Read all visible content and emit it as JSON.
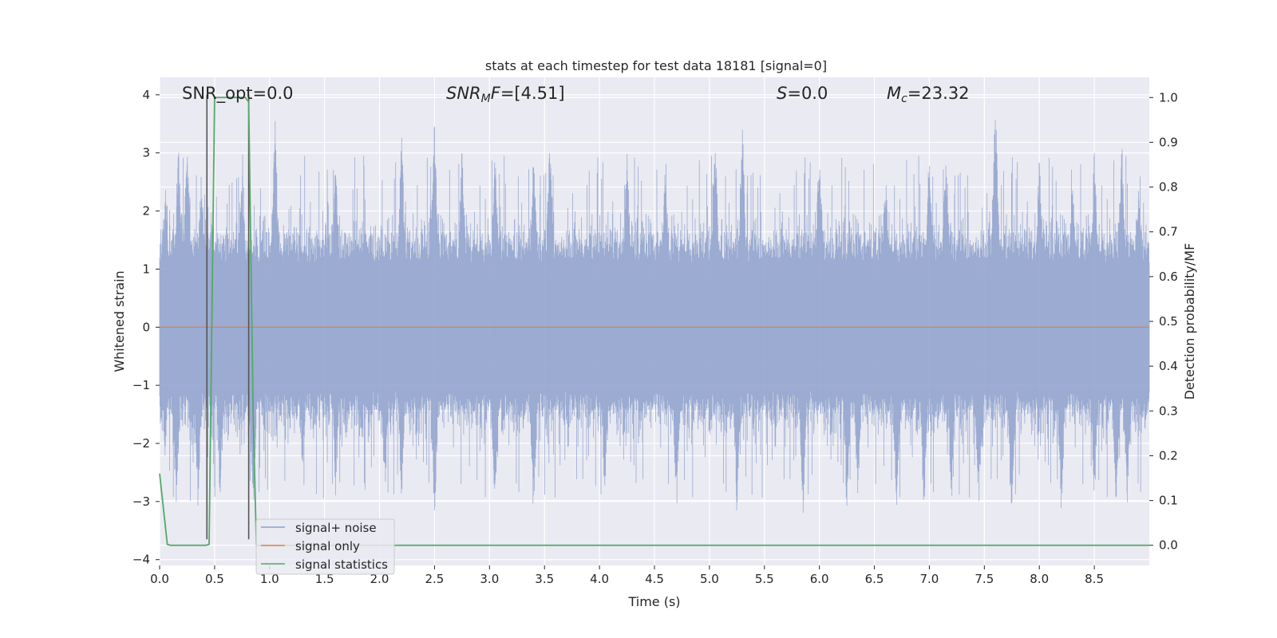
{
  "chart_data": {
    "type": "line",
    "title": "stats at each timestep for test data 18181 [signal=0]",
    "xlabel": "Time (s)",
    "ylabel": "Whitened strain",
    "y2label": "Detection probability/MF",
    "xlim": [
      0.0,
      9.0
    ],
    "ylim": [
      -4.1,
      4.3
    ],
    "y2lim": [
      -0.045,
      1.045
    ],
    "xticks": [
      0.0,
      0.5,
      1.0,
      1.5,
      2.0,
      2.5,
      3.0,
      3.5,
      4.0,
      4.5,
      5.0,
      5.5,
      6.0,
      6.5,
      7.0,
      7.5,
      8.0,
      8.5
    ],
    "xtick_labels": [
      "0.0",
      "0.5",
      "1.0",
      "1.5",
      "2.0",
      "2.5",
      "3.0",
      "3.5",
      "4.0",
      "4.5",
      "5.0",
      "5.5",
      "6.0",
      "6.5",
      "7.0",
      "7.5",
      "8.0",
      "8.5"
    ],
    "yticks": [
      -4,
      -3,
      -2,
      -1,
      0,
      1,
      2,
      3,
      4
    ],
    "ytick_labels": [
      "−4",
      "−3",
      "−2",
      "−1",
      "0",
      "1",
      "2",
      "3",
      "4"
    ],
    "y2ticks": [
      0.0,
      0.1,
      0.2,
      0.3,
      0.4,
      0.5,
      0.6,
      0.7,
      0.8,
      0.9,
      1.0
    ],
    "y2tick_labels": [
      "0.0",
      "0.1",
      "0.2",
      "0.3",
      "0.4",
      "0.5",
      "0.6",
      "0.7",
      "0.8",
      "0.9",
      "1.0"
    ],
    "grid": true,
    "legend_position": "lower-left",
    "annotations": [
      {
        "id": "snr-opt",
        "text": "SNR_opt=0.0",
        "x": 0.2
      },
      {
        "id": "snr-mf",
        "text": "SNR_MF=[4.51]",
        "x": 2.6
      },
      {
        "id": "s-value",
        "text": "S=0.0",
        "x": 5.6
      },
      {
        "id": "mc-value",
        "text": "M_c=23.32",
        "x": 6.6
      }
    ],
    "vlines": [
      0.43,
      0.81
    ],
    "series": [
      {
        "name": "signal+ noise",
        "color": "#8da0cb",
        "axis": "left",
        "description": "dense whitened noise, approx +/-1.5 core with spikes to about +/-3.5",
        "peaks_pos": [
          [
            0.05,
            2.6
          ],
          [
            0.17,
            3.3
          ],
          [
            0.25,
            3.3
          ],
          [
            0.38,
            2.8
          ],
          [
            0.47,
            2.1
          ],
          [
            0.75,
            2.9
          ],
          [
            1.05,
            3.7
          ],
          [
            1.6,
            2.9
          ],
          [
            2.2,
            3.4
          ],
          [
            2.5,
            3.6
          ],
          [
            2.75,
            3.2
          ],
          [
            3.05,
            3.2
          ],
          [
            3.4,
            3.1
          ],
          [
            3.55,
            3.4
          ],
          [
            4.25,
            3.1
          ],
          [
            4.6,
            2.9
          ],
          [
            5.05,
            3.5
          ],
          [
            5.3,
            3.5
          ],
          [
            6.0,
            3.3
          ],
          [
            6.6,
            2.8
          ],
          [
            7.0,
            3.2
          ],
          [
            7.15,
            3.3
          ],
          [
            7.6,
            4.0
          ],
          [
            8.0,
            3.0
          ],
          [
            8.3,
            2.7
          ],
          [
            8.5,
            3.1
          ],
          [
            8.75,
            3.3
          ],
          [
            8.9,
            2.6
          ]
        ],
        "peaks_neg": [
          [
            0.05,
            -2.3
          ],
          [
            0.15,
            -3.2
          ],
          [
            0.35,
            -3.2
          ],
          [
            0.55,
            -3.1
          ],
          [
            0.85,
            -3.3
          ],
          [
            1.3,
            -2.6
          ],
          [
            1.6,
            -3.0
          ],
          [
            2.05,
            -3.1
          ],
          [
            2.2,
            -3.0
          ],
          [
            2.5,
            -3.4
          ],
          [
            3.4,
            -3.5
          ],
          [
            3.05,
            -3.3
          ],
          [
            4.05,
            -3.1
          ],
          [
            4.7,
            -3.3
          ],
          [
            5.25,
            -3.3
          ],
          [
            5.85,
            -3.3
          ],
          [
            6.25,
            -3.3
          ],
          [
            6.35,
            -3.1
          ],
          [
            6.7,
            -3.3
          ],
          [
            6.95,
            -3.3
          ],
          [
            7.2,
            -3.2
          ],
          [
            7.45,
            -3.3
          ],
          [
            7.75,
            -3.3
          ],
          [
            8.2,
            -3.3
          ],
          [
            8.5,
            -3.1
          ],
          [
            8.7,
            -3.3
          ],
          [
            8.8,
            -3.2
          ]
        ]
      },
      {
        "name": "signal only",
        "color": "#dd8452",
        "axis": "left",
        "x": [
          0.0,
          9.0
        ],
        "y": [
          0.0,
          0.0
        ]
      },
      {
        "name": "signal statistics",
        "color": "#55a868",
        "axis": "right",
        "x": [
          0.0,
          0.07,
          0.1,
          0.42,
          0.45,
          0.5,
          0.55,
          0.78,
          0.81,
          0.85,
          0.88,
          0.9,
          9.0
        ],
        "y": [
          0.16,
          0.002,
          0.0,
          0.0,
          0.002,
          1.0,
          1.0,
          1.0,
          0.99,
          0.3,
          0.0,
          0.0,
          0.0
        ]
      }
    ]
  }
}
